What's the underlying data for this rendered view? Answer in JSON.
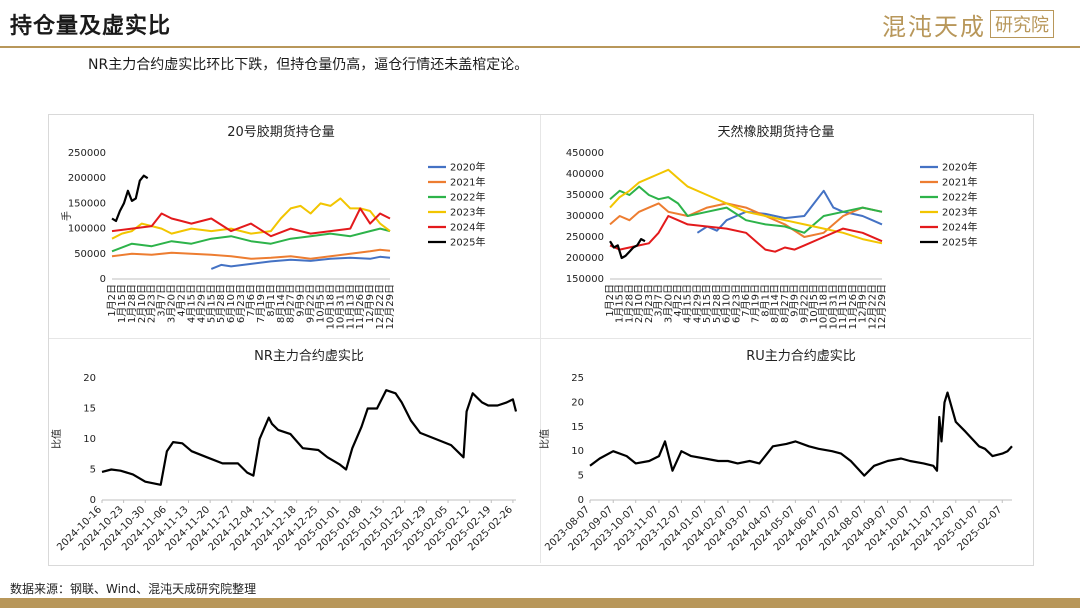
{
  "header": {
    "title": "持仓量及虚实比",
    "brand_a": "混沌天成",
    "brand_b": "研究院"
  },
  "subtitle": "NR主力合约虚实比环比下跌，但持仓量仍高，逼仓行情还未盖棺定论。",
  "source": "数据来源：钢联、Wind、混沌天成研究院整理",
  "colors": {
    "2020": "#4472C4",
    "2021": "#ED7D31",
    "2022": "#2DB34A",
    "2023": "#F2C500",
    "2024": "#E31A1C",
    "2025": "#000000",
    "accent": "#B8975A"
  },
  "chart_data": [
    {
      "type": "line",
      "title": "20号胶期货持仓量",
      "ylabel": "手",
      "ylim": [
        0,
        250000
      ],
      "yticks": [
        0,
        50000,
        100000,
        150000,
        200000,
        250000
      ],
      "xticks": [
        "1月2日",
        "1月15日",
        "1月28日",
        "2月10日",
        "2月23日",
        "3月7日",
        "3月20日",
        "4月2日",
        "4月15日",
        "4月29日",
        "5月15日",
        "5月28日",
        "6月10日",
        "6月23日",
        "7月6日",
        "7月19日",
        "8月1日",
        "8月14日",
        "8月27日",
        "9月9日",
        "9月22日",
        "10月5日",
        "10月18日",
        "10月31日",
        "11月13日",
        "11月26日",
        "12月9日",
        "12月22日",
        "12月29日"
      ],
      "series": [
        {
          "name": "2020年",
          "x": [
            10,
            11,
            12,
            14,
            16,
            18,
            20,
            22,
            24,
            26,
            27,
            28
          ],
          "y": [
            20000,
            28000,
            25000,
            30000,
            35000,
            38000,
            36000,
            40000,
            42000,
            40000,
            44000,
            42000
          ]
        },
        {
          "name": "2021年",
          "x": [
            0,
            2,
            4,
            6,
            8,
            10,
            12,
            14,
            16,
            18,
            20,
            22,
            24,
            26,
            27,
            28
          ],
          "y": [
            45000,
            50000,
            48000,
            52000,
            50000,
            48000,
            45000,
            40000,
            42000,
            45000,
            40000,
            45000,
            50000,
            55000,
            58000,
            56000
          ]
        },
        {
          "name": "2022年",
          "x": [
            0,
            2,
            4,
            6,
            8,
            10,
            12,
            14,
            16,
            18,
            20,
            22,
            24,
            26,
            27,
            28
          ],
          "y": [
            55000,
            70000,
            65000,
            75000,
            70000,
            80000,
            85000,
            75000,
            70000,
            80000,
            85000,
            90000,
            85000,
            95000,
            100000,
            95000
          ]
        },
        {
          "name": "2023年",
          "x": [
            0,
            1,
            2,
            3,
            4,
            5,
            6,
            8,
            10,
            12,
            14,
            16,
            17,
            18,
            19,
            20,
            21,
            22,
            23,
            24,
            25,
            26,
            27,
            28
          ],
          "y": [
            80000,
            90000,
            95000,
            110000,
            105000,
            100000,
            90000,
            100000,
            95000,
            100000,
            90000,
            95000,
            120000,
            140000,
            145000,
            130000,
            150000,
            145000,
            160000,
            140000,
            140000,
            135000,
            110000,
            95000
          ]
        },
        {
          "name": "2024年",
          "x": [
            0,
            2,
            4,
            5,
            6,
            7,
            8,
            10,
            12,
            14,
            16,
            18,
            20,
            22,
            24,
            25,
            26,
            27,
            28
          ],
          "y": [
            95000,
            100000,
            105000,
            130000,
            120000,
            115000,
            110000,
            120000,
            95000,
            110000,
            85000,
            100000,
            90000,
            95000,
            100000,
            140000,
            110000,
            130000,
            120000
          ]
        },
        {
          "name": "2025年",
          "x": [
            0,
            0.4,
            0.8,
            1.2,
            1.6,
            2,
            2.4,
            2.8,
            3.2,
            3.6
          ],
          "y": [
            120000,
            115000,
            135000,
            150000,
            175000,
            155000,
            160000,
            195000,
            205000,
            200000
          ]
        }
      ]
    },
    {
      "type": "line",
      "title": "天然橡胶期货持仓量",
      "ylim": [
        150000,
        450000
      ],
      "yticks": [
        150000,
        200000,
        250000,
        300000,
        350000,
        400000,
        450000
      ],
      "xticks": [
        "1月2日",
        "1月15日",
        "1月28日",
        "2月10日",
        "2月23日",
        "3月7日",
        "3月20日",
        "4月2日",
        "4月15日",
        "4月29日",
        "5月15日",
        "5月28日",
        "6月10日",
        "6月23日",
        "7月6日",
        "7月19日",
        "8月1日",
        "8月14日",
        "8月27日",
        "9月9日",
        "9月22日",
        "10月5日",
        "10月18日",
        "10月31日",
        "11月13日",
        "11月26日",
        "12月9日",
        "12月22日",
        "12月29日"
      ],
      "series": [
        {
          "name": "2020年",
          "x": [
            9,
            10,
            11,
            12,
            13,
            14,
            16,
            18,
            20,
            21,
            22,
            23,
            24,
            25,
            26,
            27,
            28
          ],
          "y": [
            260000,
            275000,
            265000,
            290000,
            300000,
            310000,
            305000,
            295000,
            300000,
            330000,
            360000,
            320000,
            310000,
            305000,
            300000,
            290000,
            280000
          ]
        },
        {
          "name": "2021年",
          "x": [
            0,
            1,
            2,
            3,
            4,
            5,
            6,
            8,
            10,
            12,
            14,
            16,
            18,
            20,
            22,
            24,
            26,
            28
          ],
          "y": [
            280000,
            300000,
            290000,
            310000,
            320000,
            330000,
            310000,
            300000,
            320000,
            330000,
            320000,
            300000,
            280000,
            250000,
            260000,
            300000,
            320000,
            310000
          ]
        },
        {
          "name": "2022年",
          "x": [
            0,
            1,
            2,
            3,
            4,
            5,
            6,
            7,
            8,
            10,
            12,
            14,
            16,
            18,
            20,
            22,
            24,
            26,
            28
          ],
          "y": [
            340000,
            360000,
            350000,
            370000,
            350000,
            340000,
            345000,
            330000,
            300000,
            310000,
            320000,
            290000,
            280000,
            275000,
            260000,
            300000,
            310000,
            320000,
            310000
          ]
        },
        {
          "name": "2023年",
          "x": [
            0,
            1,
            2,
            3,
            4,
            5,
            6,
            7,
            8,
            10,
            12,
            14,
            16,
            18,
            20,
            22,
            24,
            26,
            28
          ],
          "y": [
            320000,
            345000,
            360000,
            380000,
            390000,
            400000,
            410000,
            390000,
            370000,
            350000,
            330000,
            310000,
            300000,
            290000,
            280000,
            270000,
            260000,
            245000,
            235000
          ]
        },
        {
          "name": "2024年",
          "x": [
            0,
            1,
            2,
            3,
            4,
            5,
            6,
            7,
            8,
            10,
            12,
            14,
            15,
            16,
            17,
            18,
            19,
            20,
            22,
            24,
            26,
            28
          ],
          "y": [
            230000,
            220000,
            225000,
            230000,
            235000,
            260000,
            300000,
            290000,
            280000,
            275000,
            270000,
            260000,
            240000,
            220000,
            215000,
            225000,
            220000,
            230000,
            250000,
            270000,
            260000,
            240000
          ]
        },
        {
          "name": "2025年",
          "x": [
            0,
            0.4,
            0.8,
            1.2,
            1.6,
            2,
            2.4,
            2.8,
            3.2,
            3.6
          ],
          "y": [
            240000,
            225000,
            230000,
            200000,
            205000,
            215000,
            225000,
            230000,
            245000,
            240000
          ]
        }
      ]
    },
    {
      "type": "line",
      "title": "NR主力合约虚实比",
      "ylabel": "比值",
      "ylim": [
        0,
        20
      ],
      "yticks": [
        0,
        5,
        10,
        15,
        20
      ],
      "xticks": [
        "2024-10-16",
        "2024-10-23",
        "2024-10-30",
        "2024-11-06",
        "2024-11-13",
        "2024-11-20",
        "2024-11-27",
        "2024-12-04",
        "2024-12-11",
        "2024-12-18",
        "2024-12-25",
        "2025-01-01",
        "2025-01-08",
        "2025-01-15",
        "2025-01-22",
        "2025-01-29",
        "2025-02-05",
        "2025-02-12",
        "2025-02-19",
        "2025-02-26"
      ],
      "series": [
        {
          "name": "",
          "x": [
            "2024-10-16",
            "2024-10-19",
            "2024-10-22",
            "2024-10-26",
            "2024-10-30",
            "2024-11-04",
            "2024-11-06",
            "2024-11-08",
            "2024-11-11",
            "2024-11-14",
            "2024-11-19",
            "2024-11-24",
            "2024-11-29",
            "2024-12-02",
            "2024-12-04",
            "2024-12-06",
            "2024-12-09",
            "2024-12-10",
            "2024-12-12",
            "2024-12-16",
            "2024-12-20",
            "2024-12-25",
            "2024-12-28",
            "2025-01-01",
            "2025-01-03",
            "2025-01-05",
            "2025-01-08",
            "2025-01-10",
            "2025-01-13",
            "2025-01-16",
            "2025-01-19",
            "2025-01-21",
            "2025-01-24",
            "2025-01-27",
            "2025-02-01",
            "2025-02-06",
            "2025-02-10",
            "2025-02-11",
            "2025-02-13",
            "2025-02-16",
            "2025-02-18",
            "2025-02-21",
            "2025-02-24",
            "2025-02-26",
            "2025-02-27"
          ],
          "y": [
            4.6,
            5.0,
            4.8,
            4.2,
            3.0,
            2.5,
            8.0,
            9.5,
            9.3,
            8.0,
            7.0,
            6.0,
            6.0,
            4.5,
            4.0,
            10.0,
            13.5,
            12.5,
            11.5,
            10.8,
            8.5,
            8.2,
            7.0,
            5.8,
            5.0,
            8.5,
            12.0,
            15.0,
            15.0,
            18.0,
            17.5,
            16.0,
            13.0,
            11.0,
            10.0,
            9.0,
            7.0,
            14.5,
            17.5,
            16.0,
            15.5,
            15.5,
            16.0,
            16.5,
            14.5
          ]
        }
      ]
    },
    {
      "type": "line",
      "title": "RU主力合约虚实比",
      "ylabel": "比值",
      "ylim": [
        0,
        25
      ],
      "yticks": [
        0,
        5,
        10,
        15,
        20,
        25
      ],
      "xticks": [
        "2023-08-07",
        "2023-09-07",
        "2023-10-07",
        "2023-11-07",
        "2023-12-07",
        "2024-01-07",
        "2024-02-07",
        "2024-03-07",
        "2024-04-07",
        "2024-05-07",
        "2024-06-07",
        "2024-07-07",
        "2024-08-07",
        "2024-09-07",
        "2024-10-07",
        "2024-11-07",
        "2024-12-07",
        "2025-01-07",
        "2025-02-07"
      ],
      "series": [
        {
          "name": "",
          "x": [
            "2023-08-07",
            "2023-08-20",
            "2023-09-07",
            "2023-09-25",
            "2023-10-07",
            "2023-10-25",
            "2023-11-07",
            "2023-11-15",
            "2023-11-25",
            "2023-12-07",
            "2023-12-20",
            "2024-01-07",
            "2024-01-25",
            "2024-02-07",
            "2024-02-20",
            "2024-03-07",
            "2024-03-20",
            "2024-04-07",
            "2024-04-25",
            "2024-05-07",
            "2024-05-25",
            "2024-06-07",
            "2024-06-25",
            "2024-07-07",
            "2024-07-20",
            "2024-08-01",
            "2024-08-07",
            "2024-08-20",
            "2024-09-07",
            "2024-09-25",
            "2024-10-07",
            "2024-10-25",
            "2024-11-07",
            "2024-11-12",
            "2024-11-15",
            "2024-11-18",
            "2024-11-22",
            "2024-11-26",
            "2024-12-07",
            "2024-12-20",
            "2025-01-07",
            "2025-01-15",
            "2025-01-25",
            "2025-02-07",
            "2025-02-14",
            "2025-02-20"
          ],
          "y": [
            7,
            8.5,
            10,
            9,
            7.5,
            8,
            9,
            12,
            6,
            10,
            9,
            8.5,
            8,
            8,
            7.5,
            8,
            7.5,
            11,
            11.5,
            12,
            11,
            10.5,
            10,
            9.5,
            8,
            6,
            5,
            7,
            8,
            8.5,
            8,
            7.5,
            7,
            6,
            17,
            12,
            20,
            22,
            16,
            14,
            11,
            10.5,
            9,
            9.5,
            10,
            11
          ]
        }
      ]
    }
  ]
}
